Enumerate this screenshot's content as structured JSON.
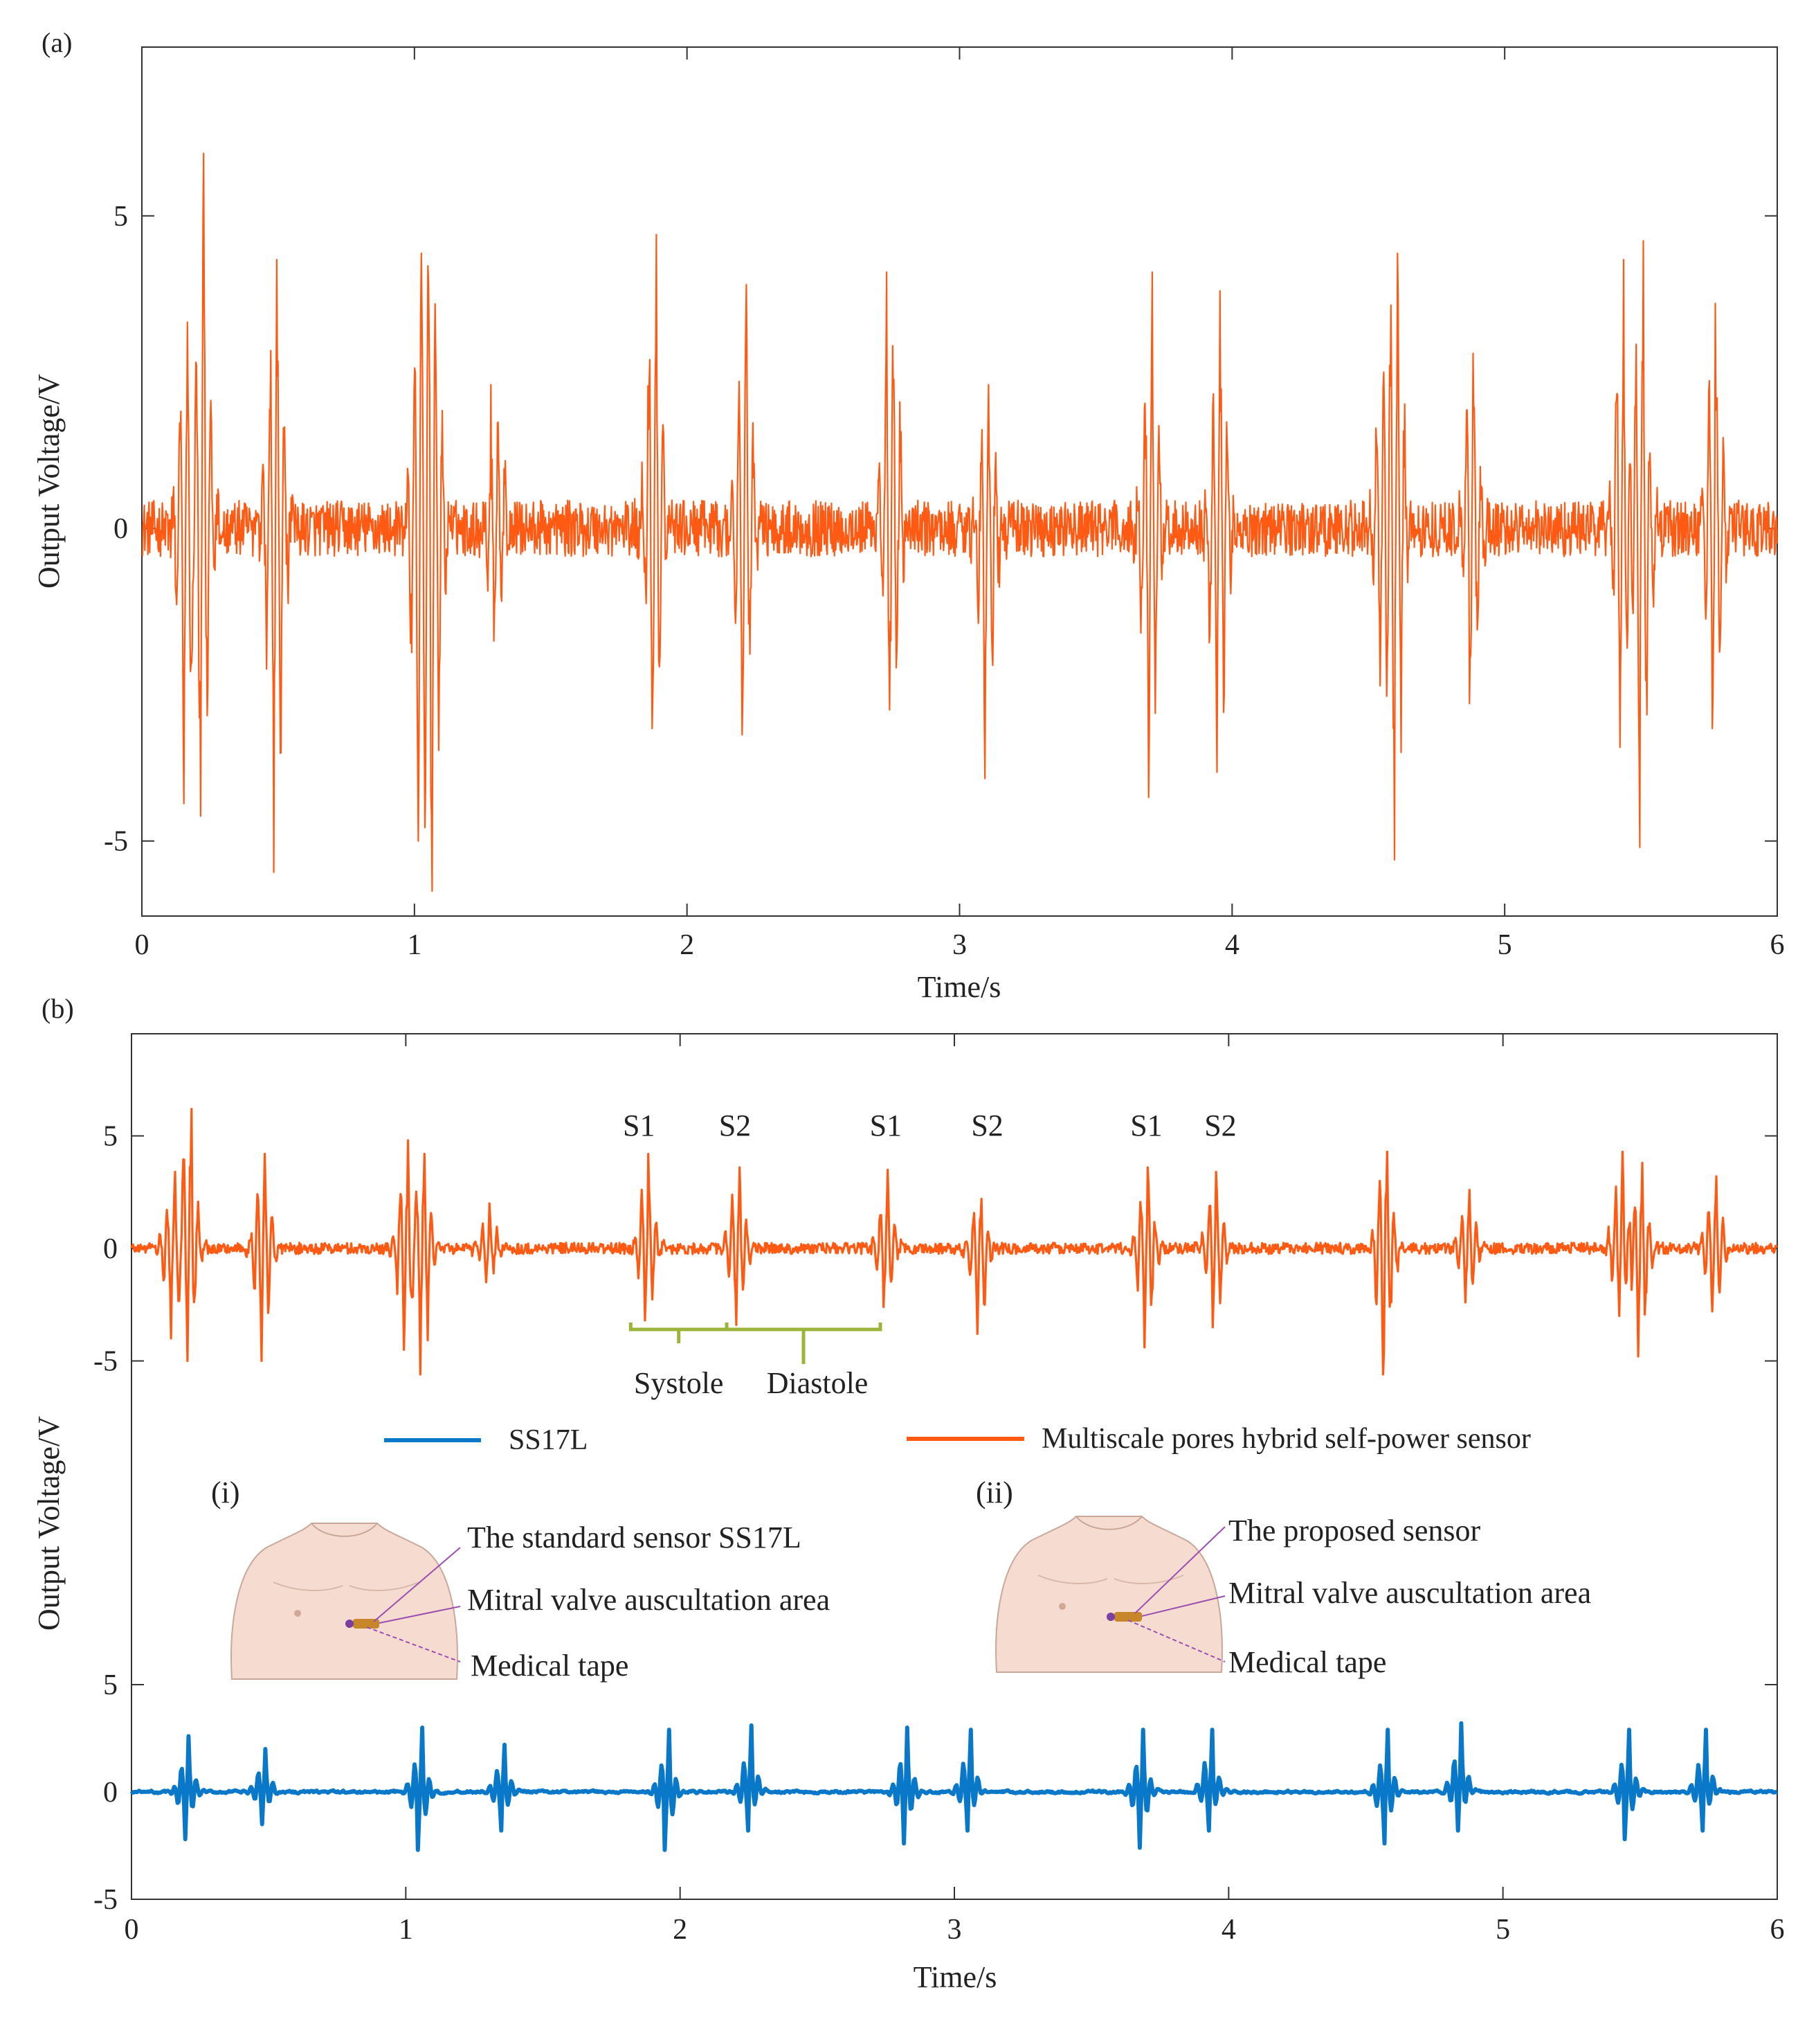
{
  "colors": {
    "orange": "#ff5a14",
    "blue": "#0a78c8",
    "green": "#9bb53a",
    "purple": "#9a4fb0",
    "skin": "#f6dcd0"
  },
  "chart_data": [
    {
      "type": "line",
      "panel_label": "(a)",
      "xlabel": "Time/s",
      "ylabel": "Output Voltage/V",
      "xlim": [
        0,
        6
      ],
      "ylim": [
        -6.2,
        7.7
      ],
      "xticks": [
        "0",
        "1",
        "2",
        "3",
        "4",
        "5",
        "6"
      ],
      "yticks": [
        {
          "value": 5,
          "label": "5"
        },
        {
          "value": 0,
          "label": "0"
        },
        {
          "value": -5,
          "label": "-5"
        }
      ],
      "grid": false,
      "series": [
        {
          "color": "#ff5a14",
          "noise": 0.45,
          "beats": [
            {
              "t": 0.16,
              "peak": 3.3,
              "trough": -4.4
            },
            {
              "t": 0.22,
              "peak": 6.0,
              "trough": -4.6
            },
            {
              "t": 0.49,
              "peak": 4.3,
              "trough": -5.5
            },
            {
              "t": 1.02,
              "peak": 4.4,
              "trough": -5.0
            },
            {
              "t": 1.07,
              "peak": 4.2,
              "trough": -5.8
            },
            {
              "t": 1.3,
              "peak": 2.3,
              "trough": -1.8
            },
            {
              "t": 1.88,
              "peak": 4.7,
              "trough": -3.2
            },
            {
              "t": 2.21,
              "peak": 3.9,
              "trough": -3.3
            },
            {
              "t": 2.75,
              "peak": 4.1,
              "trough": -2.9
            },
            {
              "t": 3.1,
              "peak": 2.3,
              "trough": -4.0
            },
            {
              "t": 3.7,
              "peak": 4.1,
              "trough": -4.3
            },
            {
              "t": 3.95,
              "peak": 3.8,
              "trough": -3.9
            },
            {
              "t": 4.55,
              "peak": 2.5,
              "trough": -2.0
            },
            {
              "t": 4.6,
              "peak": 4.4,
              "trough": -5.3
            },
            {
              "t": 4.88,
              "peak": 2.8,
              "trough": -2.8
            },
            {
              "t": 5.43,
              "peak": 4.3,
              "trough": -3.5
            },
            {
              "t": 5.5,
              "peak": 4.6,
              "trough": -5.1
            },
            {
              "t": 5.77,
              "peak": 3.6,
              "trough": -3.2
            }
          ]
        }
      ]
    },
    {
      "type": "line",
      "panel_label": "(b)",
      "xlabel": "Time/s",
      "ylabel": "Output Voltage/V",
      "xlim": [
        0,
        6
      ],
      "grid": false,
      "legend": {
        "placement": "middle",
        "entries": [
          {
            "name": "SS17L",
            "color": "#0a78c8"
          },
          {
            "name": "Multiscale pores hybrid self-power sensor",
            "color": "#ff5a14"
          }
        ]
      },
      "upper_yticks": [
        {
          "value": 5,
          "label": "5"
        },
        {
          "value": 0,
          "label": "0"
        },
        {
          "value": -5,
          "label": "-5"
        }
      ],
      "lower_yticks": [
        {
          "value": 5,
          "label": "5"
        },
        {
          "value": 0,
          "label": "0"
        },
        {
          "value": -5,
          "label": "-5"
        }
      ],
      "xticks": [
        "0",
        "1",
        "2",
        "3",
        "4",
        "5",
        "6"
      ],
      "series": [
        {
          "name": "Multiscale pores hybrid self-power sensor",
          "color": "#ff5a14",
          "noise": 0.25,
          "beats": [
            {
              "t": 0.15,
              "peak": 3.4,
              "trough": -4.0
            },
            {
              "t": 0.21,
              "peak": 6.2,
              "trough": -5.0
            },
            {
              "t": 0.48,
              "peak": 4.2,
              "trough": -5.0
            },
            {
              "t": 1.0,
              "peak": 4.8,
              "trough": -4.5
            },
            {
              "t": 1.06,
              "peak": 4.2,
              "trough": -5.6
            },
            {
              "t": 1.3,
              "peak": 2.0,
              "trough": -1.5
            },
            {
              "t": 1.88,
              "peak": 4.2,
              "trough": -3.2
            },
            {
              "t": 2.21,
              "peak": 3.6,
              "trough": -3.4
            },
            {
              "t": 2.75,
              "peak": 3.5,
              "trough": -2.6
            },
            {
              "t": 3.09,
              "peak": 2.2,
              "trough": -3.8
            },
            {
              "t": 3.7,
              "peak": 3.6,
              "trough": -4.4
            },
            {
              "t": 3.95,
              "peak": 3.4,
              "trough": -3.5
            },
            {
              "t": 4.57,
              "peak": 4.3,
              "trough": -5.6
            },
            {
              "t": 4.87,
              "peak": 2.6,
              "trough": -2.4
            },
            {
              "t": 5.43,
              "peak": 4.3,
              "trough": -3.0
            },
            {
              "t": 5.5,
              "peak": 3.8,
              "trough": -4.8
            },
            {
              "t": 5.77,
              "peak": 3.2,
              "trough": -2.8
            }
          ]
        },
        {
          "name": "SS17L",
          "color": "#0a78c8",
          "noise": 0.1,
          "beats": [
            {
              "t": 0.2,
              "peak": 2.6,
              "trough": -2.2
            },
            {
              "t": 0.48,
              "peak": 2.0,
              "trough": -1.5
            },
            {
              "t": 1.05,
              "peak": 3.0,
              "trough": -2.7
            },
            {
              "t": 1.35,
              "peak": 2.2,
              "trough": -1.8
            },
            {
              "t": 1.95,
              "peak": 2.9,
              "trough": -2.7
            },
            {
              "t": 2.25,
              "peak": 3.1,
              "trough": -1.8
            },
            {
              "t": 2.82,
              "peak": 3.0,
              "trough": -2.4
            },
            {
              "t": 3.05,
              "peak": 2.9,
              "trough": -1.8
            },
            {
              "t": 3.68,
              "peak": 2.9,
              "trough": -2.6
            },
            {
              "t": 3.93,
              "peak": 2.9,
              "trough": -1.8
            },
            {
              "t": 4.57,
              "peak": 2.9,
              "trough": -2.4
            },
            {
              "t": 4.84,
              "peak": 3.2,
              "trough": -1.8
            },
            {
              "t": 5.45,
              "peak": 2.9,
              "trough": -2.2
            },
            {
              "t": 5.73,
              "peak": 2.9,
              "trough": -1.8
            }
          ]
        }
      ],
      "annotations": {
        "sounds": [
          {
            "label": "S1",
            "t": 1.85
          },
          {
            "label": "S2",
            "t": 2.2
          },
          {
            "label": "S1",
            "t": 2.75
          },
          {
            "label": "S2",
            "t": 3.12
          },
          {
            "label": "S1",
            "t": 3.7
          },
          {
            "label": "S2",
            "t": 3.97
          }
        ],
        "phases": {
          "systole_label": "Systole",
          "diastole_label": "Diastole",
          "start_t": 1.82,
          "split_t": 2.17,
          "end_t": 2.73
        }
      },
      "insets": [
        {
          "label": "(i)",
          "callouts": [
            "The standard sensor SS17L",
            "Mitral valve auscultation area",
            "Medical tape"
          ]
        },
        {
          "label": "(ii)",
          "callouts": [
            "The proposed sensor",
            "Mitral valve auscultation area",
            "Medical tape"
          ]
        }
      ]
    }
  ]
}
